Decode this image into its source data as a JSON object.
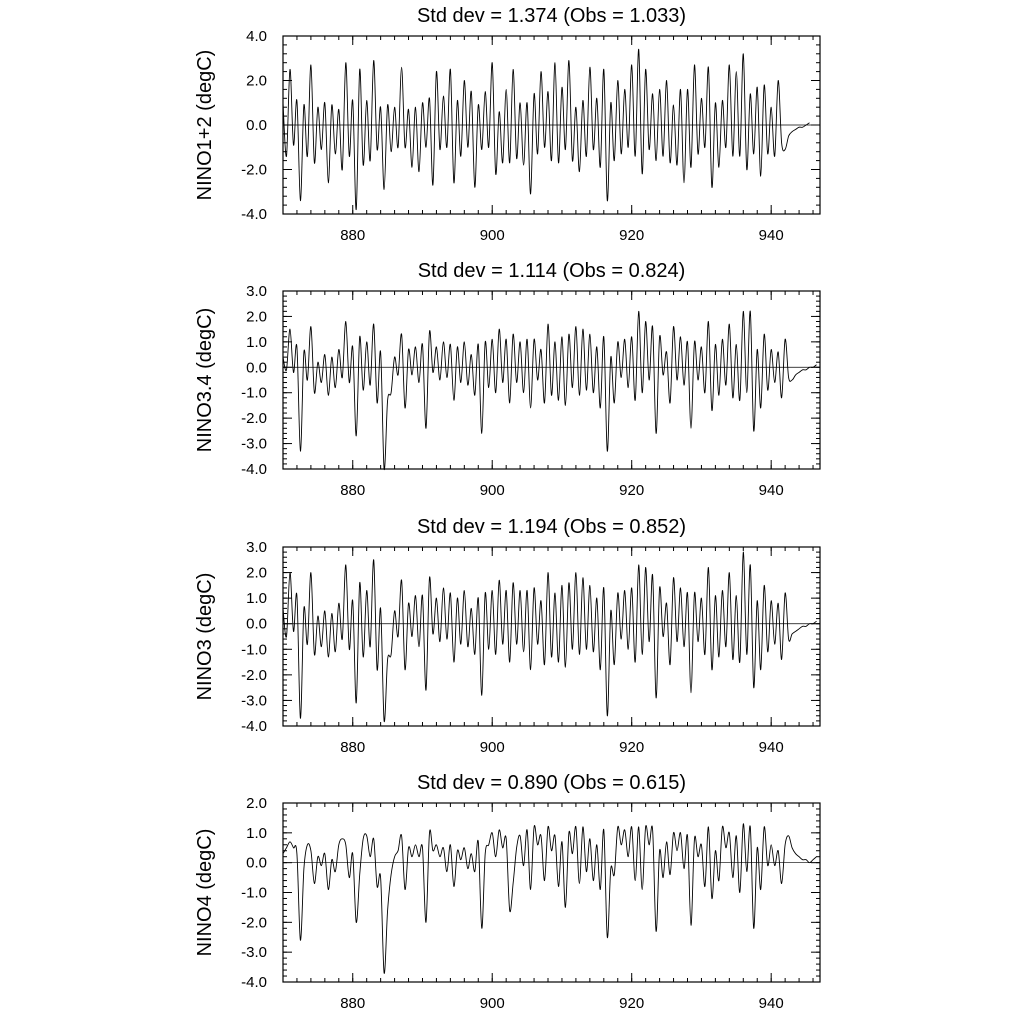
{
  "chart_data": [
    {
      "type": "line",
      "title": "Std dev = 1.374 (Obs = 1.033)",
      "ylabel": "NINO1+2 (degC)",
      "xlabel": "",
      "xlim": [
        870,
        947
      ],
      "ylim": [
        -4.0,
        4.0
      ],
      "xticks": [
        880,
        900,
        920,
        940
      ],
      "xtick_labels": [
        "880",
        "900",
        "920",
        "940"
      ],
      "yticks": [
        4.0,
        2.0,
        0.0,
        -2.0,
        -4.0
      ],
      "ytick_labels": [
        "4.0",
        "2.0",
        "0.0",
        "-2.0",
        "-4.0"
      ],
      "x_minor_step": 2,
      "y_minor_step": 0.4,
      "series": [
        {
          "name": "NINO1+2",
          "x_start": 870,
          "x_step": 0.5,
          "values": [
            1.0,
            -1.4,
            2.5,
            -0.9,
            1.1,
            -3.4,
            0.9,
            -1.4,
            2.7,
            -1.7,
            0.8,
            -1.1,
            1.0,
            -2.6,
            0.9,
            -1.3,
            0.7,
            -2.0,
            2.8,
            -1.4,
            1.1,
            -3.8,
            2.5,
            -1.8,
            1.1,
            -1.6,
            2.9,
            -1.1,
            0.8,
            -2.9,
            0.9,
            -1.2,
            0.8,
            -1.0,
            2.6,
            -1.0,
            0.7,
            -1.9,
            0.8,
            -2.1,
            1.0,
            -1.0,
            1.2,
            -2.7,
            2.4,
            -1.1,
            1.3,
            -1.0,
            2.5,
            -2.6,
            1.1,
            -1.4,
            2.0,
            -1.0,
            1.5,
            -2.8,
            0.9,
            -1.1,
            1.5,
            -1.0,
            2.8,
            -2.2,
            0.6,
            -1.7,
            1.6,
            -1.7,
            2.5,
            -1.5,
            1.0,
            -1.8,
            1.0,
            -3.1,
            1.4,
            -1.3,
            2.4,
            -1.0,
            1.5,
            -1.6,
            2.8,
            -1.7,
            1.7,
            -1.1,
            2.9,
            -1.6,
            0.8,
            -2.1,
            1.1,
            -1.4,
            2.6,
            -1.1,
            1.2,
            -1.9,
            2.5,
            -3.4,
            1.0,
            -1.6,
            2.0,
            -1.3,
            1.6,
            -1.0,
            2.7,
            -1.4,
            3.4,
            -2.2,
            2.5,
            -1.1,
            1.4,
            -1.6,
            1.6,
            -1.4,
            2.0,
            -1.7,
            0.9,
            -1.8,
            1.6,
            -2.6,
            1.6,
            -1.9,
            2.7,
            -1.3,
            1.2,
            -1.0,
            2.6,
            -2.8,
            1.0,
            -1.9,
            1.1,
            -1.0,
            2.7,
            -1.4,
            2.4,
            -1.4,
            3.2,
            -2.0,
            1.4,
            -1.3,
            1.7,
            -2.3,
            1.8,
            -1.3,
            0.8,
            -1.4,
            2.0,
            -0.8,
            -1.1,
            -0.5,
            -0.3,
            -0.2,
            -0.1,
            -0.1,
            0.0,
            0.1
          ]
        }
      ]
    },
    {
      "type": "line",
      "title": "Std dev = 1.114 (Obs = 0.824)",
      "ylabel": "NINO3.4 (degC)",
      "xlabel": "",
      "xlim": [
        870,
        947
      ],
      "ylim": [
        -4.0,
        3.0
      ],
      "xticks": [
        880,
        900,
        920,
        940
      ],
      "xtick_labels": [
        "880",
        "900",
        "920",
        "940"
      ],
      "yticks": [
        3.0,
        2.0,
        1.0,
        0.0,
        -1.0,
        -2.0,
        -3.0,
        -4.0
      ],
      "ytick_labels": [
        "3.0",
        "2.0",
        "1.0",
        "0.0",
        "-1.0",
        "-2.0",
        "-3.0",
        "-4.0"
      ],
      "x_minor_step": 2,
      "y_minor_step": 0.2,
      "series": [
        {
          "name": "NINO3.4",
          "x_start": 870,
          "x_step": 0.5,
          "values": [
            0.4,
            -0.1,
            1.5,
            -0.2,
            0.8,
            -3.3,
            0.6,
            -0.5,
            1.6,
            -1.0,
            0.2,
            -0.6,
            0.5,
            -1.1,
            0.4,
            -0.8,
            0.7,
            -0.4,
            1.8,
            -0.6,
            0.8,
            -2.7,
            1.2,
            -0.9,
            1.0,
            -0.7,
            1.7,
            -1.4,
            0.6,
            -4.0,
            -1.3,
            -1.0,
            0.4,
            -0.3,
            1.3,
            -1.6,
            0.7,
            -0.3,
            0.8,
            -0.6,
            0.9,
            -2.4,
            1.4,
            -0.2,
            0.8,
            -0.5,
            1.0,
            -0.4,
            0.9,
            -1.3,
            0.8,
            -0.6,
            1.0,
            -0.7,
            0.5,
            -1.1,
            0.9,
            -2.6,
            1.0,
            -0.8,
            1.1,
            -1.0,
            1.5,
            -0.6,
            1.1,
            -1.4,
            1.3,
            -0.6,
            1.0,
            -1.0,
            1.1,
            -1.6,
            1.1,
            -0.5,
            0.7,
            -1.4,
            1.7,
            -1.1,
            1.0,
            -1.3,
            1.2,
            -1.5,
            1.3,
            -0.8,
            1.6,
            -1.1,
            1.5,
            -0.9,
            1.3,
            -1.0,
            0.8,
            -1.6,
            1.2,
            -3.3,
            0.4,
            -1.4,
            1.0,
            -0.4,
            1.1,
            -0.8,
            1.2,
            -1.3,
            2.2,
            -1.0,
            1.8,
            -0.5,
            1.6,
            -2.6,
            1.2,
            -0.3,
            0.6,
            -1.4,
            1.6,
            -0.5,
            1.2,
            -0.7,
            1.0,
            -2.4,
            1.0,
            -0.5,
            0.8,
            -1.0,
            1.8,
            -1.7,
            0.9,
            -1.1,
            1.1,
            -0.7,
            1.7,
            -1.2,
            0.9,
            -1.3,
            2.2,
            -1.0,
            2.2,
            -2.5,
            0.7,
            -1.6,
            1.3,
            -0.9,
            0.7,
            -0.6,
            0.6,
            -1.2,
            1.1,
            -0.4,
            -0.5,
            -0.3,
            -0.2,
            -0.1,
            -0.1,
            0.0,
            0.0,
            0.1
          ]
        }
      ]
    },
    {
      "type": "line",
      "title": "Std dev = 1.194 (Obs = 0.852)",
      "ylabel": "NINO3 (degC)",
      "xlabel": "",
      "xlim": [
        870,
        947
      ],
      "ylim": [
        -4.0,
        3.0
      ],
      "xticks": [
        880,
        900,
        920,
        940
      ],
      "xtick_labels": [
        "880",
        "900",
        "920",
        "940"
      ],
      "yticks": [
        3.0,
        2.0,
        1.0,
        0.0,
        -1.0,
        -2.0,
        -3.0,
        -4.0
      ],
      "ytick_labels": [
        "3.0",
        "2.0",
        "1.0",
        "0.0",
        "-1.0",
        "-2.0",
        "-3.0",
        "-4.0"
      ],
      "x_minor_step": 2,
      "y_minor_step": 0.2,
      "series": [
        {
          "name": "NINO3",
          "x_start": 870,
          "x_step": 0.5,
          "values": [
            0.6,
            -0.5,
            2.0,
            -0.3,
            1.1,
            -3.7,
            0.6,
            -0.8,
            2.0,
            -1.2,
            0.3,
            -0.9,
            0.5,
            -1.3,
            0.4,
            -1.1,
            0.8,
            -0.6,
            2.3,
            -1.0,
            0.9,
            -3.1,
            1.6,
            -1.3,
            1.3,
            -0.9,
            2.5,
            -1.8,
            0.6,
            -3.8,
            -1.4,
            -1.2,
            0.5,
            -0.5,
            1.7,
            -1.8,
            0.8,
            -0.5,
            1.1,
            -0.9,
            1.1,
            -2.6,
            1.8,
            -0.4,
            1.0,
            -0.7,
            1.4,
            -0.6,
            1.2,
            -1.5,
            1.0,
            -0.8,
            1.3,
            -0.9,
            0.6,
            -1.2,
            1.0,
            -2.8,
            1.2,
            -1.0,
            1.3,
            -1.2,
            1.7,
            -0.8,
            1.3,
            -1.5,
            1.6,
            -0.8,
            1.3,
            -1.1,
            1.3,
            -1.8,
            1.4,
            -0.8,
            0.9,
            -1.6,
            2.0,
            -1.3,
            1.2,
            -1.5,
            1.5,
            -1.7,
            1.6,
            -1.0,
            2.0,
            -1.2,
            1.8,
            -1.0,
            1.5,
            -1.1,
            1.0,
            -1.8,
            1.4,
            -3.6,
            0.5,
            -1.6,
            1.2,
            -0.6,
            1.3,
            -1.0,
            1.4,
            -1.5,
            2.3,
            -1.2,
            2.2,
            -0.7,
            1.9,
            -2.9,
            1.4,
            -0.5,
            0.8,
            -1.6,
            1.8,
            -0.7,
            1.4,
            -0.9,
            1.2,
            -2.7,
            1.2,
            -0.7,
            1.0,
            -1.2,
            2.2,
            -1.8,
            1.1,
            -1.3,
            1.3,
            -0.9,
            2.0,
            -1.4,
            1.1,
            -1.5,
            2.8,
            -1.2,
            2.3,
            -2.5,
            0.9,
            -1.8,
            1.5,
            -1.1,
            0.9,
            -0.8,
            0.8,
            -1.4,
            1.2,
            -0.6,
            -0.4,
            -0.3,
            -0.2,
            -0.1,
            -0.1,
            0.0,
            0.0,
            0.1
          ]
        }
      ]
    },
    {
      "type": "line",
      "title": "Std dev = 0.890 (Obs = 0.615)",
      "ylabel": "NINO4 (degC)",
      "xlabel": "",
      "xlim": [
        870,
        947
      ],
      "ylim": [
        -4.0,
        2.0
      ],
      "xticks": [
        880,
        900,
        920,
        940
      ],
      "xtick_labels": [
        "880",
        "900",
        "920",
        "940"
      ],
      "yticks": [
        2.0,
        1.0,
        0.0,
        -1.0,
        -2.0,
        -3.0,
        -4.0
      ],
      "ytick_labels": [
        "2.0",
        "1.0",
        "0.0",
        "-1.0",
        "-2.0",
        "-3.0",
        "-4.0"
      ],
      "x_minor_step": 2,
      "y_minor_step": 0.2,
      "series": [
        {
          "name": "NINO4",
          "x_start": 870,
          "x_step": 0.5,
          "values": [
            0.3,
            0.5,
            0.7,
            0.5,
            0.3,
            -2.6,
            -0.2,
            0.6,
            0.4,
            -0.7,
            0.2,
            -0.1,
            0.3,
            -0.9,
            0.1,
            -0.3,
            0.6,
            0.8,
            0.6,
            -0.5,
            0.3,
            -2.0,
            -0.4,
            0.8,
            0.9,
            0.2,
            0.8,
            -0.8,
            -0.5,
            -3.7,
            -1.6,
            -0.4,
            0.2,
            0.4,
            0.9,
            -0.9,
            0.5,
            0.2,
            0.6,
            0.2,
            0.5,
            -2.0,
            1.0,
            0.4,
            0.6,
            0.2,
            0.5,
            -0.3,
            0.6,
            -0.8,
            0.4,
            0.1,
            0.5,
            -0.2,
            0.3,
            -0.3,
            0.7,
            -2.2,
            0.3,
            0.6,
            1.0,
            0.2,
            1.1,
            0.5,
            0.8,
            -1.6,
            -0.7,
            0.5,
            0.9,
            -0.1,
            1.1,
            -0.9,
            1.2,
            0.6,
            0.9,
            -0.6,
            1.2,
            0.4,
            0.9,
            -0.8,
            0.7,
            -1.5,
            1.0,
            0.3,
            1.2,
            -0.7,
            1.2,
            -0.3,
            0.8,
            -0.6,
            0.6,
            -0.9,
            1.1,
            -2.5,
            -0.2,
            -0.4,
            1.2,
            0.6,
            1.1,
            0.2,
            1.2,
            -0.6,
            1.2,
            -0.9,
            1.2,
            0.6,
            1.1,
            -2.3,
            0.4,
            -0.5,
            0.7,
            -0.4,
            1.0,
            0.4,
            1.0,
            -0.2,
            0.9,
            -2.1,
            0.8,
            0.2,
            0.6,
            -0.8,
            1.2,
            -1.2,
            0.4,
            -0.6,
            1.2,
            0.5,
            1.0,
            -0.5,
            0.9,
            -1.0,
            1.3,
            -0.3,
            1.2,
            -2.2,
            0.5,
            -0.9,
            1.2,
            -0.1,
            0.6,
            -0.1,
            0.4,
            -0.7,
            0.6,
            0.9,
            0.5,
            0.3,
            0.2,
            0.1,
            0.1,
            0.0,
            0.1,
            0.2
          ]
        }
      ]
    }
  ]
}
